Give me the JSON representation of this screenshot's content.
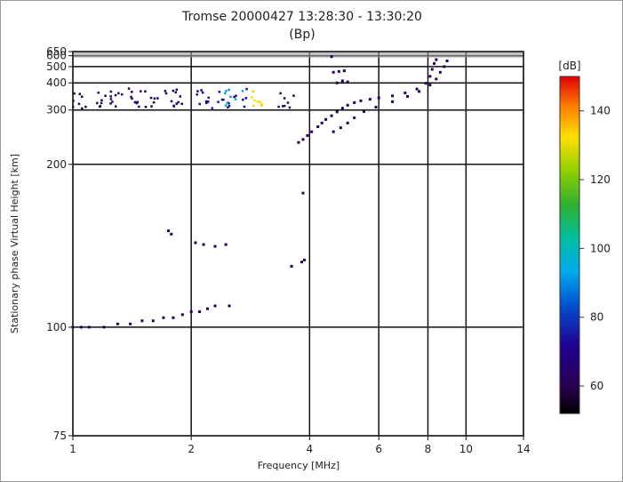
{
  "chart_data": {
    "type": "scatter",
    "title": "Tromse 20000427 13:28:30 - 13:30:20",
    "subtitle": "(Bp)",
    "xlabel": "Frequency [MHz]",
    "ylabel": "Stationary phase Virtual Height [km]",
    "x_scale": "log",
    "y_scale": "reciprocal",
    "xlim": [
      1,
      14
    ],
    "ylim": [
      75,
      650
    ],
    "x_ticks": [
      1,
      2,
      4,
      6,
      8,
      10,
      14
    ],
    "x_tick_labels": [
      "1",
      "2",
      "4",
      "6",
      "8",
      "10",
      "14"
    ],
    "y_ticks": [
      75,
      100,
      200,
      300,
      400,
      500,
      600,
      650
    ],
    "y_tick_labels": [
      "75",
      "100",
      "200",
      "300",
      "400",
      "500",
      "600",
      "650"
    ],
    "grid": true,
    "colorbar": {
      "unit": "[dB]",
      "range": [
        52,
        150
      ],
      "ticks": [
        60,
        80,
        100,
        120,
        140
      ],
      "tick_labels": [
        "60",
        "80",
        "100",
        "120",
        "140"
      ]
    },
    "series": [
      {
        "kind": "low-trace",
        "values": [
          [
            1.0,
            100,
            62
          ],
          [
            1.05,
            100,
            62
          ],
          [
            1.1,
            100,
            62
          ],
          [
            1.2,
            100,
            62
          ],
          [
            1.3,
            101,
            62
          ],
          [
            1.4,
            101,
            62
          ],
          [
            1.5,
            102,
            62
          ],
          [
            1.6,
            102,
            62
          ],
          [
            1.7,
            103,
            62
          ],
          [
            1.8,
            103,
            62
          ],
          [
            1.9,
            104,
            62
          ],
          [
            2.0,
            105,
            62
          ],
          [
            2.1,
            105,
            62
          ],
          [
            2.2,
            106,
            62
          ],
          [
            2.3,
            107,
            62
          ],
          [
            2.5,
            107,
            62
          ]
        ]
      },
      {
        "kind": "scattered-returns",
        "values": [
          [
            1.75,
            142,
            62
          ],
          [
            1.78,
            140,
            62
          ],
          [
            2.05,
            135,
            62
          ],
          [
            2.15,
            134,
            62
          ],
          [
            2.3,
            133,
            62
          ],
          [
            2.45,
            134,
            62
          ],
          [
            3.6,
            123,
            62
          ],
          [
            3.82,
            125,
            62
          ],
          [
            3.88,
            126,
            62
          ],
          [
            3.85,
            170,
            62
          ],
          [
            4.55,
            590,
            62
          ]
        ]
      },
      {
        "kind": "f-trace",
        "values": [
          [
            3.75,
            231,
            62
          ],
          [
            3.85,
            236,
            62
          ],
          [
            3.95,
            243,
            62
          ],
          [
            4.05,
            250,
            62
          ],
          [
            4.2,
            260,
            62
          ],
          [
            4.3,
            268,
            62
          ],
          [
            4.4,
            276,
            62
          ],
          [
            4.55,
            285,
            62
          ],
          [
            4.7,
            295,
            62
          ],
          [
            4.85,
            305,
            62
          ],
          [
            5.0,
            314,
            62
          ],
          [
            5.2,
            322,
            62
          ],
          [
            5.4,
            328,
            62
          ],
          [
            5.7,
            333,
            62
          ],
          [
            6.0,
            338,
            62
          ],
          [
            6.5,
            345,
            62
          ],
          [
            7.0,
            356,
            62
          ],
          [
            7.5,
            372,
            62
          ],
          [
            7.9,
            398,
            62
          ],
          [
            8.1,
            435,
            62
          ],
          [
            8.2,
            480,
            62
          ],
          [
            8.3,
            525,
            62
          ],
          [
            8.4,
            560,
            62
          ]
        ]
      },
      {
        "kind": "f-trace-second",
        "values": [
          [
            4.6,
            250,
            62
          ],
          [
            4.8,
            258,
            62
          ],
          [
            5.0,
            268,
            62
          ],
          [
            5.2,
            280,
            62
          ],
          [
            5.5,
            296,
            62
          ],
          [
            5.9,
            308,
            62
          ],
          [
            6.5,
            325,
            62
          ],
          [
            7.1,
            343,
            62
          ],
          [
            7.6,
            362,
            62
          ],
          [
            8.1,
            390,
            62
          ],
          [
            8.4,
            420,
            62
          ],
          [
            8.6,
            460,
            62
          ],
          [
            8.8,
            500,
            62
          ],
          [
            8.95,
            548,
            62
          ]
        ]
      },
      {
        "kind": "spread-cluster",
        "values": [
          [
            4.6,
            460,
            62
          ],
          [
            4.75,
            465,
            62
          ],
          [
            4.9,
            470,
            62
          ],
          [
            4.7,
            400,
            62
          ],
          [
            4.85,
            410,
            62
          ],
          [
            5.0,
            405,
            62
          ]
        ]
      },
      {
        "kind": "spread-f-band",
        "xrange": [
          1.0,
          1.95
        ],
        "yrange": [
          305,
          375
        ],
        "level": 62
      },
      {
        "kind": "spread-f-band",
        "xrange": [
          2.05,
          2.8
        ],
        "yrange": [
          305,
          375
        ],
        "level": 72
      },
      {
        "kind": "spread-f-band",
        "xrange": [
          2.4,
          2.7
        ],
        "yrange": [
          310,
          370
        ],
        "level": 95
      },
      {
        "kind": "spread-f-band",
        "xrange": [
          2.75,
          3.05
        ],
        "yrange": [
          305,
          370
        ],
        "level": 130
      },
      {
        "kind": "spread-f-band",
        "xrange": [
          3.3,
          3.65
        ],
        "yrange": [
          305,
          375
        ],
        "level": 62
      }
    ]
  }
}
